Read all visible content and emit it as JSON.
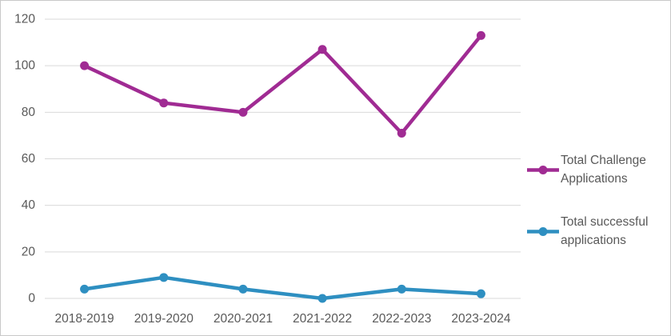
{
  "chart_data": {
    "type": "line",
    "title": "",
    "xlabel": "",
    "ylabel": "",
    "categories": [
      "2018-2019",
      "2019-2020",
      "2020-2021",
      "2021-2022",
      "2022-2023",
      "2023-2024"
    ],
    "series": [
      {
        "name": "Total Challenge Applications",
        "color": "#A02B93",
        "values": [
          100,
          84,
          80,
          107,
          71,
          113
        ]
      },
      {
        "name": "Total successful applications",
        "color": "#2E8FC1",
        "values": [
          4,
          9,
          4,
          0,
          4,
          2
        ]
      }
    ],
    "ylim": [
      0,
      120
    ],
    "yticks": [
      0,
      20,
      40,
      60,
      80,
      100,
      120
    ],
    "grid": "horizontal",
    "legend_position": "right",
    "marker": "circle"
  },
  "style": {
    "grid_color": "#D9D9D9",
    "axis_text_color": "#595959",
    "frame_border_color": "#C9C9C9",
    "background_color": "#FFFFFF",
    "line_width": 4.5,
    "marker_radius": 5.5
  }
}
